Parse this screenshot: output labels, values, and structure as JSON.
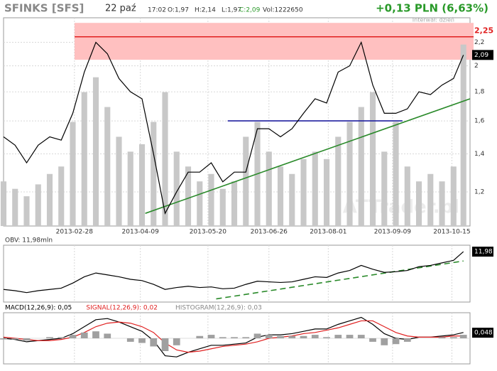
{
  "header": {
    "symbol": "SFINKS [SFS]",
    "date": "22 paź",
    "time": "17:02",
    "open": "O:1,97",
    "high": "H:2,14",
    "low": "L:1,97",
    "close": "C:2,09",
    "volume": "Vol:1222650",
    "change": "+0,13 PLN (6,63%)",
    "interval": "Interwał: dzień",
    "watermark": "ATTrader.pl"
  },
  "chart_data": [
    {
      "type": "line",
      "log": true,
      "grid": true,
      "x": [
        "2013-01-16",
        "2013-01-23",
        "2013-01-30",
        "2013-02-06",
        "2013-02-13",
        "2013-02-20",
        "2013-02-27",
        "2013-03-06",
        "2013-03-13",
        "2013-03-20",
        "2013-03-27",
        "2013-04-03",
        "2013-04-10",
        "2013-04-17",
        "2013-04-24",
        "2013-05-01",
        "2013-05-08",
        "2013-05-15",
        "2013-05-22",
        "2013-05-29",
        "2013-06-05",
        "2013-06-12",
        "2013-06-19",
        "2013-06-26",
        "2013-07-03",
        "2013-07-10",
        "2013-07-17",
        "2013-07-24",
        "2013-07-31",
        "2013-08-07",
        "2013-08-14",
        "2013-08-21",
        "2013-08-28",
        "2013-09-04",
        "2013-09-11",
        "2013-09-18",
        "2013-09-25",
        "2013-10-02",
        "2013-10-09",
        "2013-10-16",
        "2013-10-22"
      ],
      "series": [
        {
          "color": "#000000",
          "values": [
            1.5,
            1.45,
            1.35,
            1.45,
            1.5,
            1.48,
            1.65,
            1.95,
            2.2,
            2.1,
            1.9,
            1.8,
            1.75,
            1.4,
            1.1,
            1.2,
            1.3,
            1.3,
            1.35,
            1.25,
            1.3,
            1.3,
            1.55,
            1.55,
            1.5,
            1.55,
            1.65,
            1.75,
            1.72,
            1.95,
            2.0,
            2.2,
            1.85,
            1.65,
            1.65,
            1.68,
            1.8,
            1.78,
            1.85,
            1.9,
            2.09
          ]
        }
      ],
      "volume": {
        "color": "#c8c8c8",
        "values": [
          300,
          250,
          200,
          280,
          350,
          400,
          700,
          900,
          1000,
          800,
          600,
          500,
          550,
          700,
          900,
          500,
          400,
          300,
          350,
          250,
          300,
          600,
          700,
          500,
          400,
          350,
          450,
          500,
          450,
          600,
          700,
          800,
          900,
          500,
          700,
          400,
          300,
          350,
          300,
          400,
          1220
        ],
        "lim": [
          0,
          1400
        ]
      },
      "xlim": [
        "2013-01-16",
        "2013-10-26"
      ],
      "xticks": [
        "2013-02-28",
        "2013-04-09",
        "2013-05-20",
        "2013-06-26",
        "2013-08-01",
        "2013-09-09",
        "2013-10-15"
      ],
      "ylim": [
        1.045,
        2.43
      ],
      "yticks": [
        {
          "value": 1.2,
          "label": "1,2"
        },
        {
          "value": 1.4,
          "label": "1,4"
        },
        {
          "value": 1.6,
          "label": "1,6"
        },
        {
          "value": 1.8,
          "label": "1,8"
        },
        2,
        {
          "value": 2.2,
          "label": "2,2"
        }
      ],
      "band": {
        "values": [
          2.05,
          2.38
        ],
        "color": "#ffc0c0"
      },
      "levels": [
        {
          "value": 2.25,
          "label": "2,25",
          "color": "#e02020"
        }
      ],
      "lines": [
        {
          "x": [
            "2013-06-01",
            "2013-09-15"
          ],
          "y": [
            1.6,
            1.6
          ],
          "color": "#2020a0"
        },
        {
          "x": [
            "2013-04-12",
            "2013-10-26"
          ],
          "y": [
            1.1,
            1.75
          ],
          "color": "#2a8a2a"
        }
      ],
      "last": {
        "value": 2.09,
        "label": "2,09"
      }
    },
    {
      "type": "line",
      "title": "OBV: 11,98mln",
      "series": [
        {
          "color": "#000000",
          "values": [
            6,
            5.8,
            5.5,
            5.8,
            6,
            6.2,
            7,
            8,
            8.6,
            8.3,
            8,
            7.6,
            7.4,
            6.8,
            6,
            6.3,
            6.5,
            6.3,
            6.4,
            6.1,
            6.2,
            6.8,
            7.3,
            7.2,
            7.1,
            7.2,
            7.6,
            8,
            7.9,
            8.6,
            9,
            9.8,
            9.2,
            8.7,
            8.8,
            9,
            9.6,
            9.8,
            10.2,
            10.6,
            11.98
          ]
        }
      ],
      "ylim": [
        4,
        13
      ],
      "lines": [
        {
          "x": [
            "2013-05-25",
            "2013-10-22"
          ],
          "y": [
            4.5,
            10.5
          ],
          "color": "#2a8a2a",
          "dashed": true
        }
      ],
      "last": {
        "value": 11.98,
        "label": "11,98"
      }
    },
    {
      "type": "macd",
      "series": [
        {
          "name": "MACD(12,26,9): 0,05",
          "color": "#000000",
          "values": [
            0,
            -0.01,
            -0.03,
            -0.02,
            -0.01,
            0,
            0.04,
            0.1,
            0.16,
            0.17,
            0.14,
            0.1,
            0.06,
            -0.02,
            -0.15,
            -0.16,
            -0.12,
            -0.09,
            -0.06,
            -0.06,
            -0.05,
            -0.04,
            0.01,
            0.03,
            0.03,
            0.04,
            0.06,
            0.08,
            0.08,
            0.12,
            0.15,
            0.18,
            0.12,
            0.04,
            0,
            -0.01,
            0.01,
            0.01,
            0.02,
            0.03,
            0.05
          ]
        },
        {
          "name": "SIGNAL(12,26,9): 0,02",
          "color": "#e02020",
          "values": [
            0.01,
            0,
            -0.01,
            -0.02,
            -0.02,
            -0.01,
            0.01,
            0.05,
            0.1,
            0.13,
            0.14,
            0.13,
            0.1,
            0.05,
            -0.04,
            -0.1,
            -0.12,
            -0.11,
            -0.09,
            -0.07,
            -0.06,
            -0.05,
            -0.03,
            0,
            0.01,
            0.02,
            0.04,
            0.05,
            0.07,
            0.09,
            0.12,
            0.15,
            0.15,
            0.1,
            0.05,
            0.02,
            0.01,
            0.01,
            0.01,
            0.02,
            0.02
          ]
        },
        {
          "name": "HISTOGRAM(12,26,9): 0,03",
          "color": "#a0a0a0",
          "bars": true,
          "values": [
            -0.01,
            -0.01,
            -0.02,
            0,
            0.01,
            0.01,
            0.03,
            0.05,
            0.06,
            0.04,
            0,
            -0.03,
            -0.04,
            -0.07,
            -0.11,
            -0.06,
            0,
            0.02,
            0.03,
            0.01,
            0.01,
            0.01,
            0.04,
            0.03,
            0.02,
            0.02,
            0.02,
            0.03,
            0.01,
            0.03,
            0.03,
            0.03,
            -0.03,
            -0.06,
            -0.05,
            -0.03,
            0,
            0,
            0.01,
            0.01,
            0.03
          ]
        }
      ],
      "ylim": [
        -0.22,
        0.22
      ],
      "last": {
        "value": 0.048,
        "label": "0,048"
      }
    }
  ]
}
